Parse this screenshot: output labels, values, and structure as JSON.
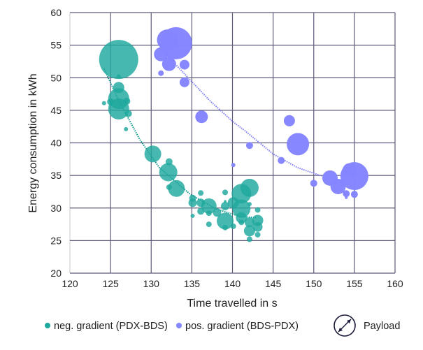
{
  "chart_data": {
    "type": "scatter",
    "subtype": "bubble",
    "title": "",
    "xlabel": "Time travelled in s",
    "ylabel": "Energy consumption in kWh",
    "xlim": [
      120,
      160
    ],
    "ylim": [
      20,
      60
    ],
    "xticks": [
      "120",
      "125",
      "130",
      "135",
      "140",
      "145",
      "150",
      "155",
      "160"
    ],
    "yticks": [
      "20",
      "25",
      "30",
      "35",
      "40",
      "45",
      "50",
      "55",
      "60"
    ],
    "grid": true,
    "legend_position": "bottom",
    "size_legend_label": "Payload",
    "series": [
      {
        "name": "neg. gradient (PDX-BDS)",
        "color": "#1ea89d",
        "points": [
          [
            126,
            52.8,
            28
          ],
          [
            126,
            50.2,
            3
          ],
          [
            126,
            48.5,
            8
          ],
          [
            126,
            46.8,
            15
          ],
          [
            126,
            45.2,
            15
          ],
          [
            124.2,
            46.1,
            3
          ],
          [
            125,
            46.3,
            5
          ],
          [
            127,
            46.4,
            5
          ],
          [
            127.2,
            44.5,
            5
          ],
          [
            126.9,
            42.1,
            3
          ],
          [
            130.2,
            38.3,
            12
          ],
          [
            132.2,
            37.1,
            5
          ],
          [
            132.1,
            35.5,
            13
          ],
          [
            132.2,
            33.2,
            4
          ],
          [
            133.1,
            33.0,
            12
          ],
          [
            136.1,
            32.3,
            4
          ],
          [
            135.1,
            31.5,
            5
          ],
          [
            135.1,
            30.8,
            6
          ],
          [
            136.1,
            30.8,
            6
          ],
          [
            137.1,
            30.3,
            11
          ],
          [
            135.1,
            28.8,
            3
          ],
          [
            136.1,
            29.5,
            5
          ],
          [
            137.1,
            29.2,
            4
          ],
          [
            138.1,
            29.3,
            6
          ],
          [
            137.1,
            27.5,
            4
          ],
          [
            139.1,
            32.4,
            4
          ],
          [
            139.1,
            30.3,
            6
          ],
          [
            139.1,
            31.0,
            2
          ],
          [
            139.1,
            28.0,
            12
          ],
          [
            139.1,
            27.0,
            4
          ],
          [
            140.1,
            30.8,
            8
          ],
          [
            140.1,
            27.2,
            4
          ],
          [
            141.1,
            32.2,
            14
          ],
          [
            142.1,
            33.1,
            13
          ],
          [
            141.1,
            29.9,
            13
          ],
          [
            141.1,
            28.5,
            8
          ],
          [
            142.1,
            30.6,
            3
          ],
          [
            141.1,
            27.8,
            4
          ],
          [
            143.1,
            29.7,
            4
          ],
          [
            143.1,
            28.1,
            8
          ],
          [
            143.1,
            27.1,
            7
          ],
          [
            142.1,
            27.8,
            7
          ],
          [
            142.1,
            26.5,
            8
          ],
          [
            143.1,
            25.9,
            4
          ],
          [
            142.1,
            25.2,
            4
          ]
        ],
        "trendline": [
          [
            124.2,
            51.4
          ],
          [
            126,
            46.5
          ],
          [
            128.6,
            40.5
          ],
          [
            131,
            36.2
          ],
          [
            134.8,
            32.1
          ],
          [
            138.1,
            29.8
          ],
          [
            141,
            28.7
          ],
          [
            143,
            28.5
          ]
        ]
      },
      {
        "name": "pos. gradient (BDS-PDX)",
        "color": "#8585ff",
        "points": [
          [
            133.05,
            55.3,
            23
          ],
          [
            132,
            55.8,
            15
          ],
          [
            131.2,
            53.6,
            10
          ],
          [
            132.2,
            52.1,
            10
          ],
          [
            134.1,
            52.0,
            7
          ],
          [
            131.2,
            50.7,
            4
          ],
          [
            134.1,
            49.3,
            7
          ],
          [
            136.2,
            44.0,
            9
          ],
          [
            147,
            43.4,
            8
          ],
          [
            148.05,
            39.8,
            16
          ],
          [
            142.1,
            39.6,
            5
          ],
          [
            146,
            37.3,
            5
          ],
          [
            140.1,
            36.6,
            3
          ],
          [
            150,
            33.8,
            5
          ],
          [
            152,
            34.6,
            11
          ],
          [
            153,
            33.3,
            11
          ],
          [
            154.4,
            35.8,
            10
          ],
          [
            155,
            34.9,
            20
          ],
          [
            154,
            32.2,
            5
          ],
          [
            155,
            32.1,
            5
          ],
          [
            154,
            31.6,
            2
          ]
        ],
        "trendline": [
          [
            132.05,
            53.3
          ],
          [
            137.2,
            46.5
          ],
          [
            140.1,
            43.2
          ],
          [
            141.5,
            41.9
          ],
          [
            145,
            38.3
          ],
          [
            148,
            36.2
          ],
          [
            151,
            34.9
          ]
        ]
      }
    ]
  }
}
